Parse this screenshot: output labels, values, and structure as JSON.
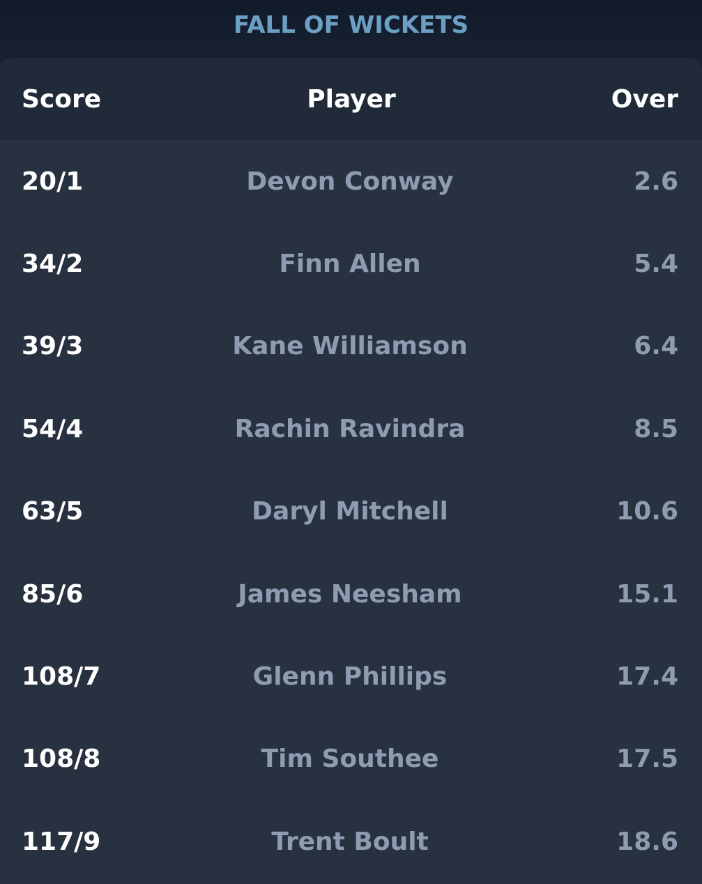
{
  "title": "FALL OF WICKETS",
  "columns": {
    "score": "Score",
    "player": "Player",
    "over": "Over"
  },
  "rows": [
    {
      "score": "20/1",
      "player": "Devon Conway",
      "over": "2.6"
    },
    {
      "score": "34/2",
      "player": "Finn Allen",
      "over": "5.4"
    },
    {
      "score": "39/3",
      "player": "Kane Williamson",
      "over": "6.4"
    },
    {
      "score": "54/4",
      "player": "Rachin Ravindra",
      "over": "8.5"
    },
    {
      "score": "63/5",
      "player": "Daryl Mitchell",
      "over": "10.6"
    },
    {
      "score": "85/6",
      "player": "James Neesham",
      "over": "15.1"
    },
    {
      "score": "108/7",
      "player": "Glenn Phillips",
      "over": "17.4"
    },
    {
      "score": "108/8",
      "player": "Tim Southee",
      "over": "17.5"
    },
    {
      "score": "117/9",
      "player": "Trent Boult",
      "over": "18.6"
    }
  ]
}
